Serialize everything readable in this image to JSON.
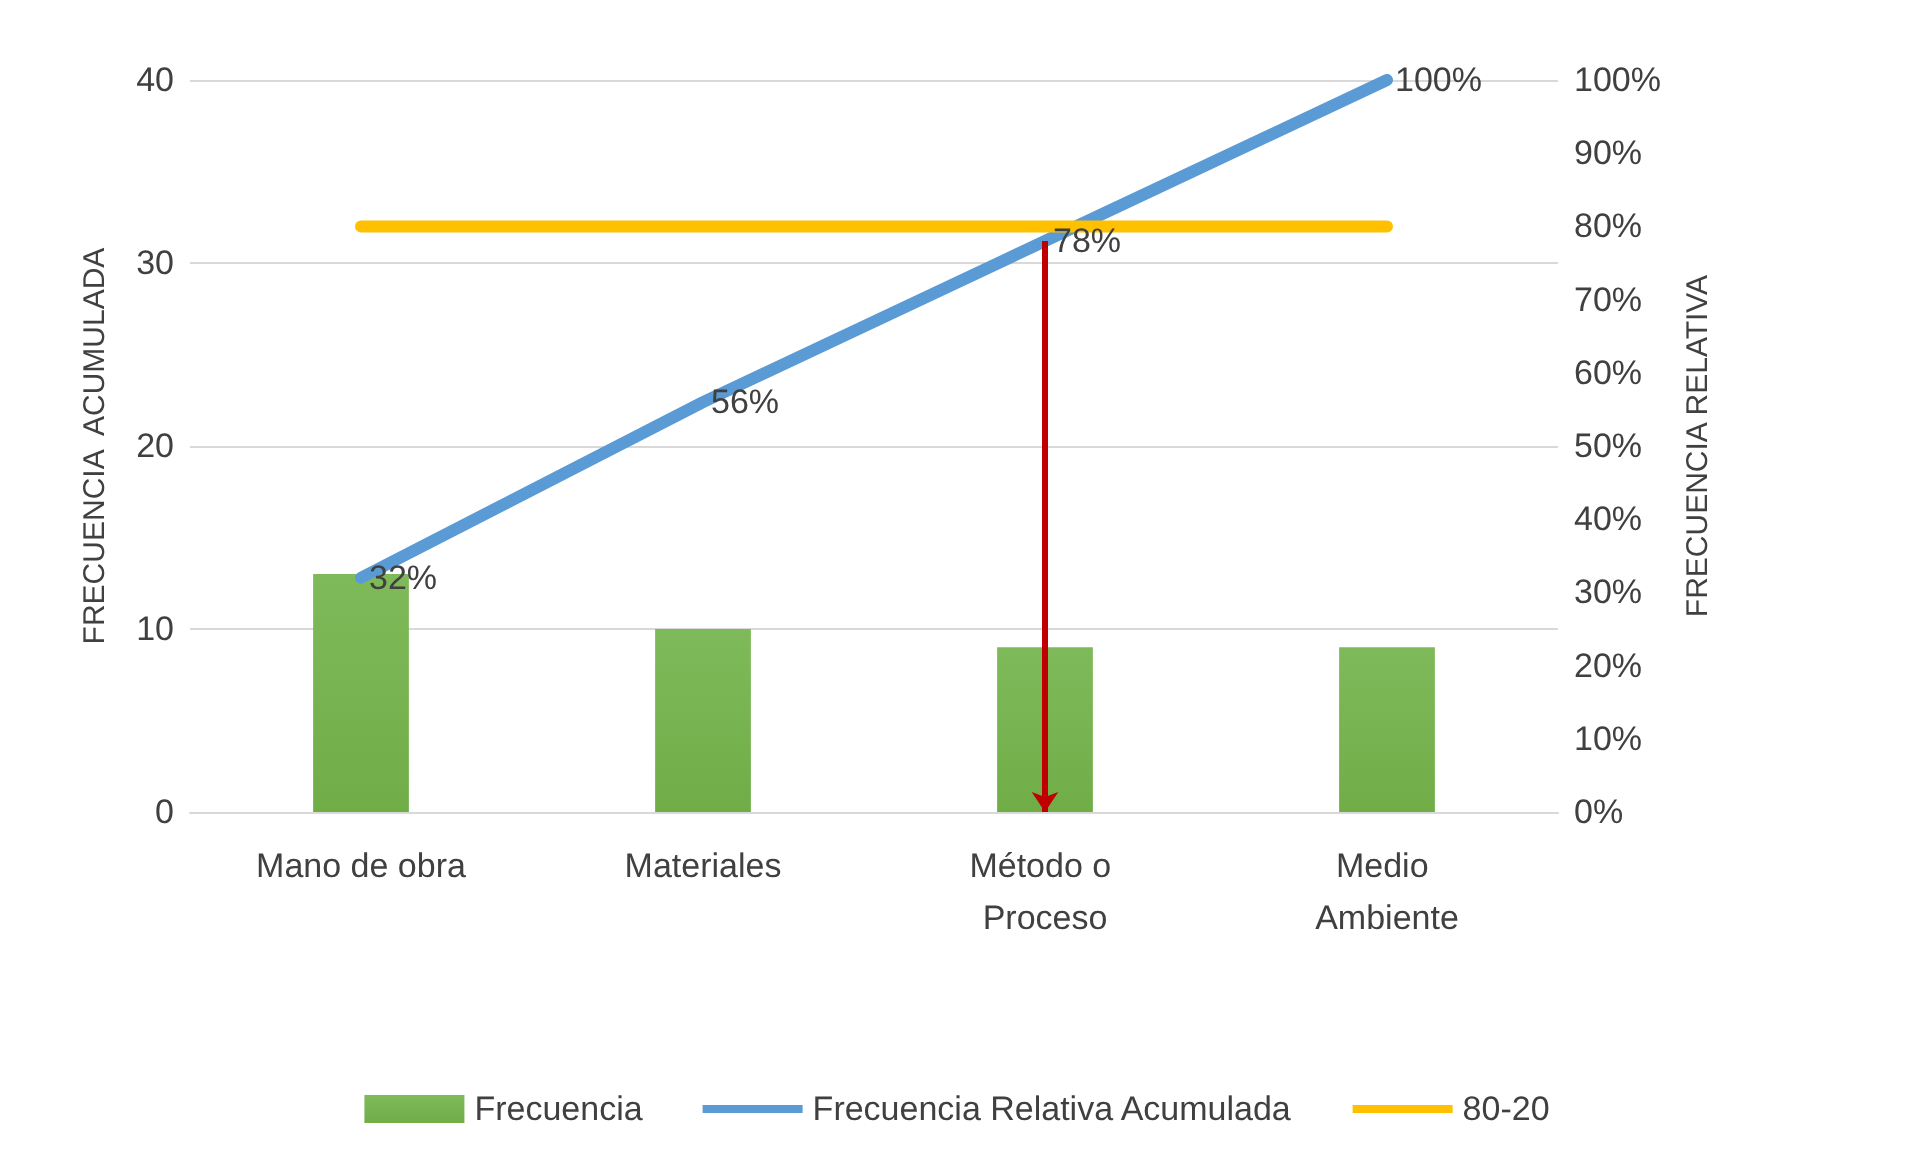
{
  "chart_data": {
    "type": "bar",
    "ylabel": "FRECUENCIA  ACUMULADA",
    "y2label": "FRECUENCIA RELATIVA",
    "categories": [
      "Mano de obra",
      "Materiales",
      "Método o Proceso",
      "Medio Ambiente"
    ],
    "series": [
      {
        "name": "Frecuencia",
        "color": "#70ad47",
        "values": [
          13,
          10,
          9,
          9
        ]
      },
      {
        "name": "Frecuencia Relativa Acumulada",
        "type": "line",
        "axis": "y2",
        "color": "#5b9bd5",
        "values": [
          32,
          56,
          78,
          100
        ],
        "value_labels": [
          "32%",
          "56%",
          "78%",
          "100%"
        ]
      },
      {
        "name": "80-20",
        "type": "line",
        "axis": "y2",
        "color": "#ffc000",
        "values": [
          80,
          80,
          80,
          80
        ]
      }
    ],
    "ylim": [
      0,
      40
    ],
    "yticks": [
      0,
      10,
      20,
      30,
      40
    ],
    "y2lim": [
      0,
      100
    ],
    "y2ticks": [
      {
        "value": 0,
        "label": "0%"
      },
      {
        "value": 10,
        "label": "10%"
      },
      {
        "value": 20,
        "label": "20%"
      },
      {
        "value": 30,
        "label": "30%"
      },
      {
        "value": 40,
        "label": "40%"
      },
      {
        "value": 50,
        "label": "50%"
      },
      {
        "value": 60,
        "label": "60%"
      },
      {
        "value": 70,
        "label": "70%"
      },
      {
        "value": 80,
        "label": "80%"
      },
      {
        "value": 90,
        "label": "90%"
      },
      {
        "value": 100,
        "label": "100%"
      }
    ],
    "grid": "y",
    "legend": "bottom",
    "marker": "none"
  }
}
